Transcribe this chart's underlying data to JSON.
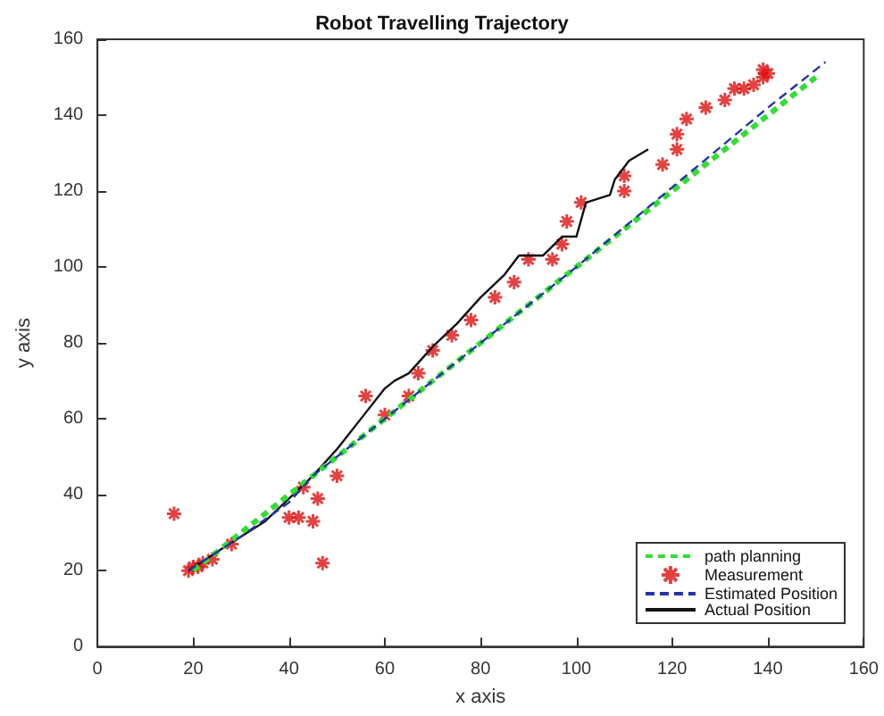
{
  "chart_data": {
    "type": "line",
    "title": "Robot Travelling Trajectory",
    "xlabel": "x axis",
    "ylabel": "y axis",
    "xlim": [
      0,
      160
    ],
    "xticks": [
      0,
      20,
      40,
      60,
      80,
      100,
      120,
      140,
      160
    ],
    "ylim": [
      0,
      160
    ],
    "yticks": [
      0,
      20,
      40,
      60,
      80,
      100,
      120,
      140,
      160
    ],
    "grid": false,
    "legend": "bottom right",
    "series": [
      {
        "name": "path planning",
        "color": "#33dd33",
        "line_style": "dashed",
        "marker": "none",
        "x": [
          20,
          150
        ],
        "values": [
          20,
          150
        ]
      },
      {
        "name": "Measurement",
        "type": "scatter",
        "color": "#dd1111",
        "marker": "cross",
        "x": [
          16,
          19,
          20,
          21,
          22,
          24,
          28,
          40,
          42,
          43,
          45,
          46,
          47,
          50,
          56,
          60,
          65,
          67,
          70,
          74,
          78,
          83,
          87,
          90,
          95,
          97,
          98,
          101,
          110,
          110,
          118,
          121,
          121,
          123,
          127,
          131,
          133,
          135,
          137,
          139,
          140,
          139
        ],
        "values": [
          35,
          20,
          21,
          21,
          22,
          23,
          27,
          34,
          34,
          42,
          33,
          39,
          22,
          45,
          66,
          61,
          66,
          72,
          78,
          82,
          86,
          92,
          96,
          102,
          102,
          106,
          112,
          117,
          124,
          120,
          127,
          131,
          135,
          139,
          142,
          144,
          147,
          147,
          148,
          150,
          151,
          152
        ]
      },
      {
        "name": "Estimated Position",
        "color": "#2233aa",
        "line_style": "dashed",
        "marker": "none",
        "x": [
          19,
          30,
          40,
          45,
          60,
          80,
          100,
          120,
          140,
          152
        ],
        "values": [
          20,
          29,
          38,
          45,
          60,
          80,
          100,
          121,
          142,
          154
        ]
      },
      {
        "name": "Actual Position",
        "color": "#111111",
        "line_style": "solid",
        "marker": "none",
        "x": [
          19,
          25,
          30,
          35,
          40,
          45,
          50,
          55,
          60,
          62,
          65,
          70,
          75,
          80,
          85,
          88,
          93,
          97,
          100,
          102,
          107,
          108,
          111,
          115
        ],
        "values": [
          20,
          25,
          29,
          33,
          39,
          45,
          52,
          60,
          68,
          70,
          72,
          79,
          85,
          92,
          98,
          103,
          103,
          108,
          108,
          117,
          119,
          123,
          128,
          131
        ]
      }
    ]
  }
}
